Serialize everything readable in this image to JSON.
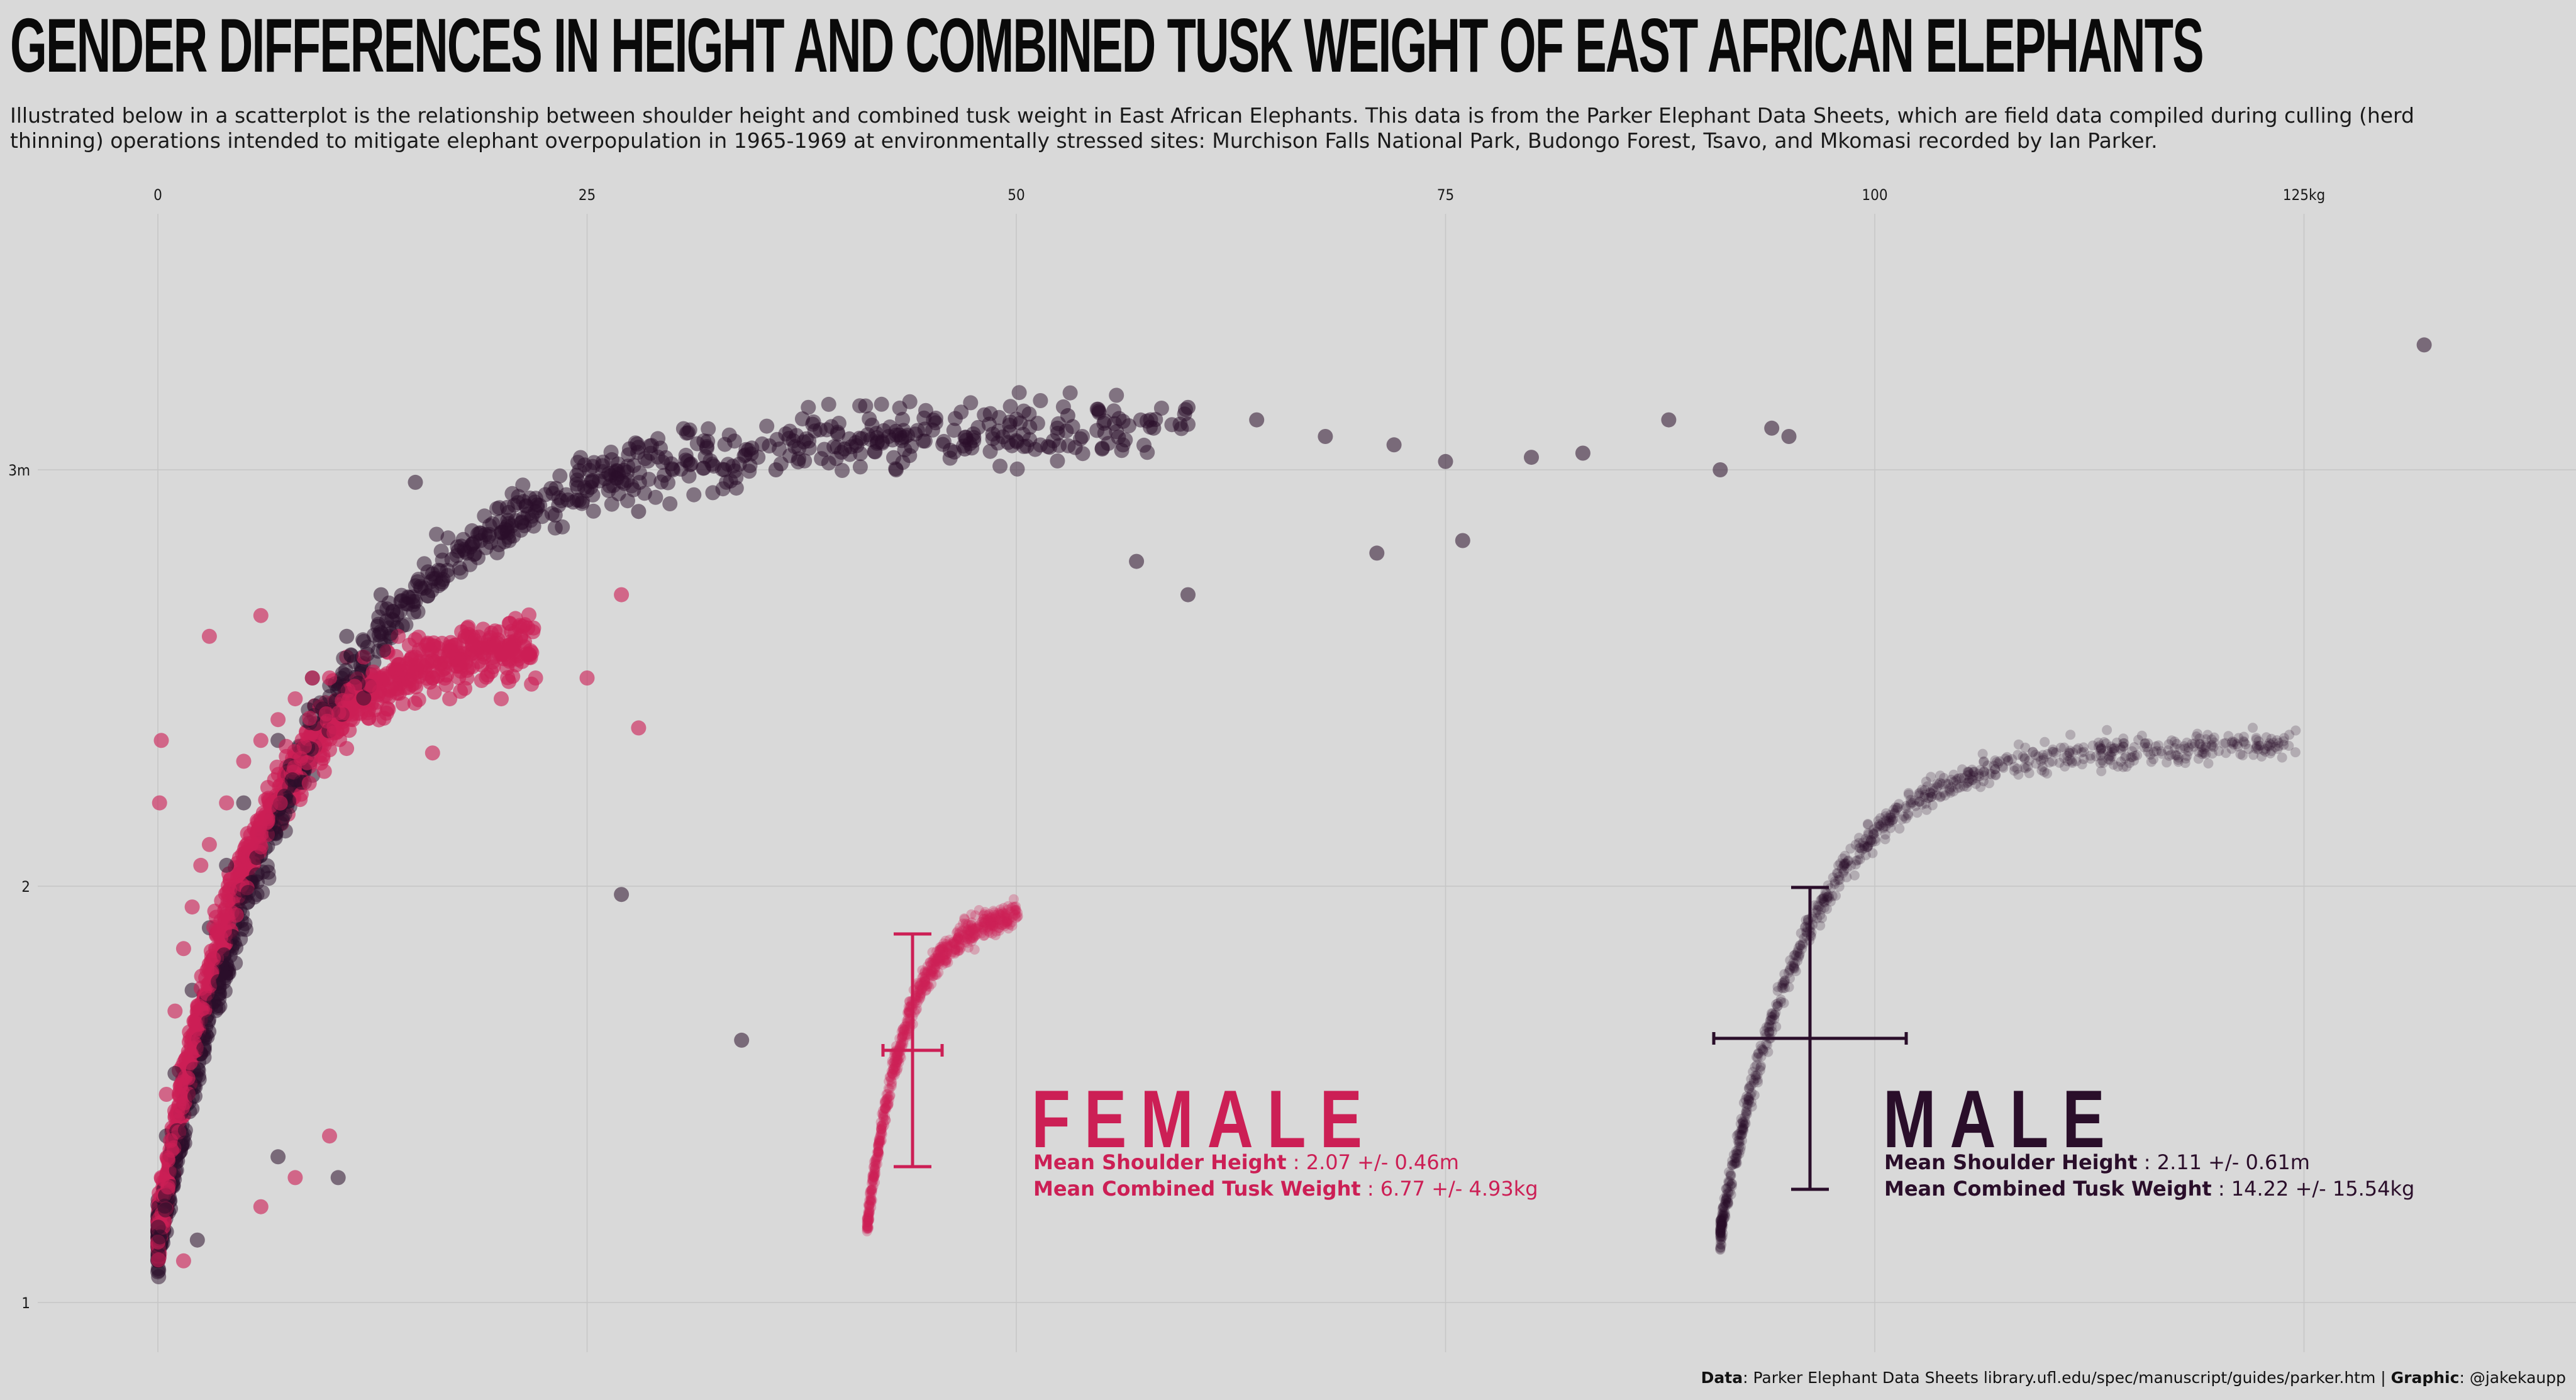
{
  "title": "GENDER DIFFERENCES IN HEIGHT AND COMBINED TUSK WEIGHT OF EAST AFRICAN ELEPHANTS",
  "subtitle": "Illustrated below in a scatterplot is the relationship between shoulder height and combined tusk weight in East African Elephants. This data is from the Parker Elephant Data Sheets, which are field data compiled during culling (herd thinning) operations intended to mitigate elephant overpopulation in 1965-1969 at environmentally stressed sites: Murchison Falls National Park, Budongo Forest, Tsavo, and Mkomasi recorded by Ian Parker.",
  "colors": {
    "female": "#cc1f55",
    "male": "#2a0e2a",
    "background": "#d9d9d9"
  },
  "chart_data": {
    "type": "scatter",
    "x_axis": {
      "ticks": [
        "0",
        "25",
        "50",
        "75",
        "100",
        "125kg"
      ],
      "values": [
        0,
        25,
        50,
        75,
        100,
        125
      ],
      "range": [
        -1,
        140
      ],
      "position": "top"
    },
    "y_axis": {
      "ticks": [
        "1",
        "2",
        "3m"
      ],
      "values": [
        1,
        2,
        3
      ],
      "range": [
        0.88,
        3.55
      ]
    },
    "grid": true,
    "series": [
      {
        "name": "FEMALE",
        "color": "#cc1f55"
      },
      {
        "name": "MALE",
        "color": "#2a0e2a"
      }
    ],
    "inset_offset_kg": {
      "female": 41,
      "male": 91
    },
    "female_points": [
      [
        0.2,
        1.3
      ],
      [
        0.5,
        1.5
      ],
      [
        1,
        1.7
      ],
      [
        1.5,
        1.85
      ],
      [
        2,
        1.95
      ],
      [
        2.5,
        2.05
      ],
      [
        3,
        2.1
      ],
      [
        4,
        2.2
      ],
      [
        5,
        2.3
      ],
      [
        6,
        2.35
      ],
      [
        7,
        2.4
      ],
      [
        8,
        2.45
      ],
      [
        9,
        2.5
      ],
      [
        10,
        2.5
      ],
      [
        11,
        2.55
      ],
      [
        12,
        2.55
      ],
      [
        13,
        2.5
      ],
      [
        14,
        2.6
      ],
      [
        15,
        2.55
      ],
      [
        16,
        2.5
      ],
      [
        17,
        2.45
      ],
      [
        18,
        2.5
      ],
      [
        20,
        2.45
      ],
      [
        22,
        2.5
      ],
      [
        0.2,
        2.35
      ],
      [
        0.1,
        2.2
      ],
      [
        3,
        2.6
      ],
      [
        6,
        2.65
      ],
      [
        8,
        1.3
      ],
      [
        10,
        1.4
      ],
      [
        6,
        1.23
      ],
      [
        1.5,
        1.1
      ],
      [
        19,
        2.55
      ],
      [
        16,
        2.32
      ],
      [
        25,
        2.5
      ],
      [
        28,
        2.38
      ],
      [
        27,
        2.7
      ]
    ],
    "male_points": [
      [
        0.2,
        1.2
      ],
      [
        0.5,
        1.4
      ],
      [
        1,
        1.55
      ],
      [
        2,
        1.75
      ],
      [
        3,
        1.9
      ],
      [
        4,
        2.05
      ],
      [
        5,
        2.2
      ],
      [
        7,
        2.35
      ],
      [
        9,
        2.5
      ],
      [
        11,
        2.6
      ],
      [
        13,
        2.7
      ],
      [
        16,
        2.75
      ],
      [
        18,
        2.8
      ],
      [
        20,
        2.85
      ],
      [
        22,
        2.9
      ],
      [
        25,
        2.95
      ],
      [
        28,
        2.9
      ],
      [
        30,
        3.0
      ],
      [
        33,
        3.0
      ],
      [
        36,
        3.0
      ],
      [
        40,
        3.05
      ],
      [
        43,
        3.0
      ],
      [
        47,
        3.05
      ],
      [
        50,
        3.07
      ],
      [
        53,
        3.13
      ],
      [
        55,
        3.05
      ],
      [
        58,
        3.1
      ],
      [
        60,
        3.15
      ],
      [
        64,
        3.12
      ],
      [
        68,
        3.08
      ],
      [
        72,
        3.06
      ],
      [
        75,
        3.02
      ],
      [
        80,
        3.03
      ],
      [
        83,
        3.04
      ],
      [
        88,
        3.12
      ],
      [
        91,
        3.0
      ],
      [
        94,
        3.1
      ],
      [
        95,
        3.08
      ],
      [
        132,
        3.3
      ],
      [
        34,
        1.63
      ],
      [
        27,
        1.98
      ],
      [
        7,
        1.35
      ],
      [
        10.5,
        1.3
      ],
      [
        0.5,
        1.17
      ],
      [
        2.3,
        1.15
      ],
      [
        15,
        2.97
      ],
      [
        60,
        2.7
      ],
      [
        57,
        2.78
      ],
      [
        76,
        2.83
      ],
      [
        71,
        2.8
      ]
    ],
    "female_summary": {
      "label": "Mean Shoulder Height",
      "value": " : 2.07 +/- 0.46m",
      "label2": "Mean Combined Tusk Weight",
      "value2": " : 6.77 +/- 4.93kg"
    },
    "male_summary": {
      "label": "Mean Shoulder Height",
      "value": " : 2.11 +/- 0.61m",
      "label2": "Mean Combined Tusk Weight",
      "value2": " : 14.22 +/- 15.54kg"
    }
  },
  "caption": {
    "data_label": "Data",
    "data_text": ": Parker Elephant Data Sheets library.ufl.edu/spec/manuscript/guides/parker.htm | ",
    "graphic_label": "Graphic",
    "graphic_text": ": @jakekaupp"
  }
}
